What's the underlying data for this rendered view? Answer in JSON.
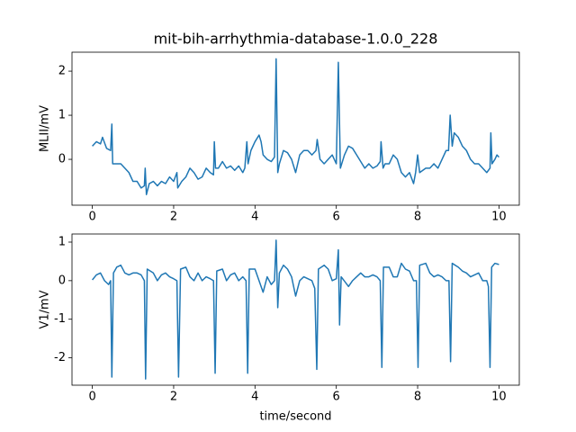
{
  "chart_data": [
    {
      "type": "line",
      "title": "mit-bih-arrhythmia-database-1.0.0_228",
      "y_label": "MLII/mV",
      "color": "#1f77b4",
      "xlim": [
        -0.5,
        10.5
      ],
      "xticks": [
        0,
        2,
        4,
        6,
        8,
        10
      ],
      "ylim": [
        -1.04,
        2.43
      ],
      "yticks": [
        0,
        1,
        2
      ],
      "x": [
        0,
        0.1,
        0.2,
        0.25,
        0.35,
        0.45,
        0.48,
        0.5,
        0.55,
        0.7,
        0.8,
        0.9,
        1.0,
        1.1,
        1.2,
        1.28,
        1.3,
        1.33,
        1.4,
        1.5,
        1.6,
        1.7,
        1.8,
        1.9,
        2.0,
        2.08,
        2.1,
        2.2,
        2.3,
        2.4,
        2.5,
        2.6,
        2.7,
        2.8,
        2.9,
        2.98,
        3.0,
        3.03,
        3.1,
        3.2,
        3.3,
        3.4,
        3.5,
        3.6,
        3.7,
        3.75,
        3.8,
        3.83,
        3.9,
        4.0,
        4.1,
        4.15,
        4.2,
        4.3,
        4.4,
        4.48,
        4.52,
        4.56,
        4.6,
        4.7,
        4.8,
        4.9,
        5.0,
        5.1,
        5.2,
        5.3,
        5.4,
        5.5,
        5.53,
        5.6,
        5.7,
        5.8,
        5.9,
        6.0,
        6.05,
        6.1,
        6.2,
        6.3,
        6.4,
        6.5,
        6.6,
        6.7,
        6.8,
        6.9,
        7.0,
        7.08,
        7.1,
        7.15,
        7.2,
        7.3,
        7.4,
        7.5,
        7.6,
        7.7,
        7.8,
        7.9,
        7.95,
        8.0,
        8.05,
        8.2,
        8.3,
        8.4,
        8.5,
        8.6,
        8.7,
        8.76,
        8.8,
        8.85,
        8.9,
        9.0,
        9.1,
        9.2,
        9.3,
        9.4,
        9.5,
        9.6,
        9.7,
        9.78,
        9.8,
        9.83,
        9.9,
        9.95,
        10.0
      ],
      "values": [
        0.3,
        0.4,
        0.35,
        0.5,
        0.25,
        0.2,
        0.8,
        -0.1,
        -0.1,
        -0.1,
        -0.2,
        -0.3,
        -0.5,
        -0.5,
        -0.65,
        -0.6,
        -0.2,
        -0.8,
        -0.55,
        -0.5,
        -0.6,
        -0.5,
        -0.55,
        -0.4,
        -0.5,
        -0.3,
        -0.65,
        -0.5,
        -0.4,
        -0.2,
        -0.3,
        -0.45,
        -0.4,
        -0.2,
        -0.3,
        -0.35,
        0.4,
        -0.2,
        -0.2,
        -0.05,
        -0.2,
        -0.15,
        -0.25,
        -0.15,
        -0.3,
        -0.2,
        0.4,
        -0.1,
        0.2,
        0.4,
        0.55,
        0.4,
        0.1,
        0.0,
        -0.05,
        0.05,
        2.28,
        -0.3,
        -0.1,
        0.2,
        0.15,
        0.0,
        -0.3,
        0.1,
        0.2,
        0.2,
        0.1,
        0.2,
        0.45,
        0.0,
        -0.1,
        0.0,
        0.1,
        -0.1,
        2.2,
        -0.2,
        0.1,
        0.3,
        0.25,
        0.1,
        -0.05,
        -0.2,
        -0.1,
        -0.2,
        -0.15,
        -0.05,
        0.4,
        -0.2,
        -0.1,
        -0.1,
        0.1,
        0.0,
        -0.3,
        -0.4,
        -0.3,
        -0.55,
        -0.3,
        0.1,
        -0.3,
        -0.2,
        -0.2,
        -0.1,
        -0.2,
        0.0,
        0.2,
        0.2,
        1.0,
        0.3,
        0.6,
        0.5,
        0.3,
        0.2,
        0.0,
        -0.1,
        -0.1,
        -0.2,
        -0.3,
        -0.2,
        0.6,
        -0.1,
        0.0,
        0.1,
        0.05
      ]
    },
    {
      "type": "line",
      "y_label": "V1/mV",
      "x_label": "time/second",
      "color": "#1f77b4",
      "xlim": [
        -0.5,
        10.5
      ],
      "xticks": [
        0,
        2,
        4,
        6,
        8,
        10
      ],
      "ylim": [
        -2.71,
        1.21
      ],
      "yticks": [
        -2,
        -1,
        0,
        1
      ],
      "x": [
        0,
        0.1,
        0.2,
        0.3,
        0.4,
        0.45,
        0.48,
        0.52,
        0.6,
        0.7,
        0.8,
        0.9,
        1.0,
        1.1,
        1.2,
        1.28,
        1.31,
        1.35,
        1.5,
        1.6,
        1.7,
        1.8,
        1.9,
        2.0,
        2.08,
        2.12,
        2.17,
        2.3,
        2.4,
        2.5,
        2.6,
        2.7,
        2.8,
        2.9,
        2.98,
        3.02,
        3.06,
        3.2,
        3.3,
        3.4,
        3.5,
        3.6,
        3.7,
        3.78,
        3.82,
        3.86,
        4.0,
        4.1,
        4.2,
        4.3,
        4.4,
        4.48,
        4.52,
        4.56,
        4.6,
        4.7,
        4.8,
        4.9,
        5.0,
        5.1,
        5.2,
        5.3,
        5.4,
        5.47,
        5.52,
        5.56,
        5.7,
        5.8,
        5.9,
        6.0,
        6.05,
        6.08,
        6.12,
        6.3,
        6.4,
        6.5,
        6.6,
        6.7,
        6.8,
        6.9,
        7.0,
        7.08,
        7.12,
        7.16,
        7.3,
        7.4,
        7.5,
        7.6,
        7.7,
        7.8,
        7.9,
        7.97,
        8.01,
        8.05,
        8.2,
        8.3,
        8.4,
        8.5,
        8.6,
        8.7,
        8.77,
        8.81,
        8.85,
        9.0,
        9.1,
        9.2,
        9.3,
        9.4,
        9.5,
        9.6,
        9.7,
        9.74,
        9.78,
        9.82,
        9.9,
        10.0
      ],
      "values": [
        0.02,
        0.15,
        0.2,
        0.0,
        -0.1,
        0.0,
        -2.5,
        0.2,
        0.35,
        0.4,
        0.2,
        0.15,
        0.2,
        0.2,
        0.15,
        0.0,
        -2.55,
        0.3,
        0.2,
        0.0,
        0.15,
        0.2,
        0.1,
        0.05,
        0.0,
        -2.5,
        0.3,
        0.35,
        0.1,
        0.0,
        0.2,
        0.0,
        0.1,
        0.05,
        0.0,
        -2.4,
        0.25,
        0.3,
        0.0,
        0.15,
        0.2,
        0.0,
        0.1,
        0.0,
        -2.4,
        0.3,
        0.3,
        0.0,
        -0.3,
        0.1,
        -0.1,
        0.0,
        1.05,
        -0.7,
        0.2,
        0.4,
        0.3,
        0.1,
        -0.4,
        0.0,
        0.1,
        0.05,
        0.0,
        -0.2,
        -2.3,
        0.3,
        0.4,
        0.3,
        0.0,
        0.05,
        0.8,
        -1.15,
        0.1,
        -0.15,
        0.0,
        0.1,
        0.2,
        0.1,
        0.1,
        0.15,
        0.1,
        0.0,
        -2.25,
        0.35,
        0.35,
        0.1,
        0.1,
        0.45,
        0.3,
        0.25,
        0.0,
        0.0,
        -2.25,
        0.4,
        0.45,
        0.2,
        0.1,
        0.15,
        0.1,
        0.0,
        0.0,
        -2.1,
        0.45,
        0.35,
        0.25,
        0.2,
        0.1,
        0.15,
        0.2,
        0.0,
        0.0,
        -0.15,
        -2.25,
        0.35,
        0.45,
        0.42
      ]
    }
  ]
}
